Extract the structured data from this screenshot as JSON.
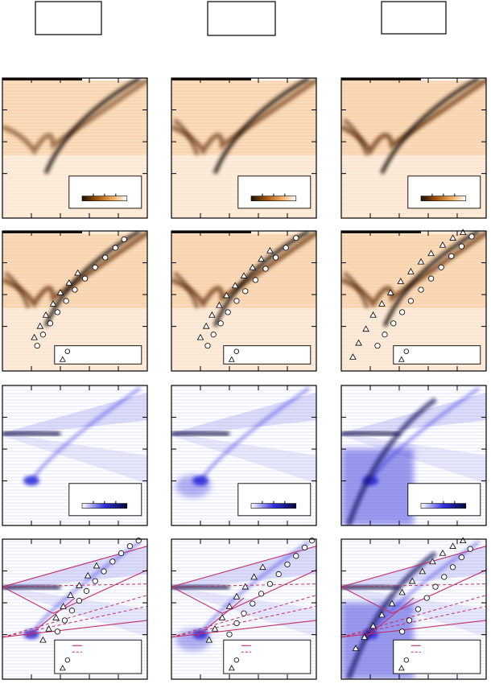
{
  "figure": {
    "columns": 3,
    "rows": 4,
    "header_labels": [
      "",
      "",
      ""
    ]
  },
  "colors": {
    "orange": "#e07a10",
    "dark_band": "#1a1208",
    "blue": "#1a1ad6",
    "theory_line": "#c0306a",
    "marker_fill": "#ffffff",
    "marker_fill_dark": "#ffffff"
  },
  "chart_data": [
    {
      "type": "heatmap",
      "panel": "r1c1",
      "colormap": "orange",
      "colorbar": true,
      "legend": false,
      "valley_x": 0.22,
      "strength": 0.8
    },
    {
      "type": "heatmap",
      "panel": "r1c2",
      "colormap": "orange",
      "colorbar": true,
      "legend": false,
      "valley_x": 0.22,
      "strength": 0.9
    },
    {
      "type": "heatmap",
      "panel": "r1c3",
      "colormap": "orange",
      "colorbar": true,
      "legend": false,
      "valley_x": 0.2,
      "strength": 1.0
    },
    {
      "type": "heatmap",
      "panel": "r2c1",
      "colormap": "orange",
      "colorbar": false,
      "legend": true,
      "circles": [
        [
          0.24,
          0.82
        ],
        [
          0.28,
          0.74
        ],
        [
          0.33,
          0.66
        ],
        [
          0.38,
          0.58
        ],
        [
          0.44,
          0.5
        ],
        [
          0.5,
          0.42
        ],
        [
          0.57,
          0.34
        ],
        [
          0.64,
          0.26
        ],
        [
          0.71,
          0.19
        ],
        [
          0.78,
          0.12
        ],
        [
          0.84,
          0.06
        ]
      ],
      "triangles": [
        [
          0.22,
          0.76
        ],
        [
          0.26,
          0.68
        ],
        [
          0.3,
          0.6
        ],
        [
          0.35,
          0.52
        ],
        [
          0.4,
          0.44
        ],
        [
          0.46,
          0.37
        ],
        [
          0.52,
          0.3
        ]
      ]
    },
    {
      "type": "heatmap",
      "panel": "r2c2",
      "colormap": "orange",
      "colorbar": false,
      "legend": true,
      "circles": [
        [
          0.25,
          0.82
        ],
        [
          0.29,
          0.74
        ],
        [
          0.34,
          0.66
        ],
        [
          0.39,
          0.58
        ],
        [
          0.45,
          0.5
        ],
        [
          0.51,
          0.43
        ],
        [
          0.58,
          0.35
        ],
        [
          0.65,
          0.27
        ],
        [
          0.72,
          0.19
        ],
        [
          0.79,
          0.12
        ],
        [
          0.86,
          0.05
        ]
      ],
      "triangles": [
        [
          0.2,
          0.76
        ],
        [
          0.24,
          0.68
        ],
        [
          0.28,
          0.6
        ],
        [
          0.33,
          0.53
        ],
        [
          0.38,
          0.46
        ],
        [
          0.44,
          0.39
        ],
        [
          0.5,
          0.32
        ],
        [
          0.56,
          0.26
        ],
        [
          0.62,
          0.2
        ],
        [
          0.68,
          0.14
        ]
      ]
    },
    {
      "type": "heatmap",
      "panel": "r2c3",
      "colormap": "orange",
      "colorbar": false,
      "legend": true,
      "circles": [
        [
          0.25,
          0.82
        ],
        [
          0.3,
          0.74
        ],
        [
          0.36,
          0.66
        ],
        [
          0.42,
          0.58
        ],
        [
          0.48,
          0.5
        ],
        [
          0.55,
          0.42
        ],
        [
          0.62,
          0.34
        ],
        [
          0.69,
          0.26
        ],
        [
          0.76,
          0.18
        ],
        [
          0.83,
          0.11
        ],
        [
          0.9,
          0.04
        ]
      ],
      "triangles": [
        [
          0.08,
          0.9
        ],
        [
          0.12,
          0.8
        ],
        [
          0.17,
          0.7
        ],
        [
          0.22,
          0.6
        ],
        [
          0.28,
          0.52
        ],
        [
          0.34,
          0.44
        ],
        [
          0.41,
          0.36
        ],
        [
          0.48,
          0.29
        ],
        [
          0.55,
          0.22
        ],
        [
          0.62,
          0.16
        ],
        [
          0.7,
          0.1
        ],
        [
          0.77,
          0.05
        ],
        [
          0.84,
          0.01
        ]
      ]
    },
    {
      "type": "heatmap",
      "panel": "r3c1",
      "colormap": "blue",
      "colorbar": true,
      "legend": false
    },
    {
      "type": "heatmap",
      "panel": "r3c2",
      "colormap": "blue",
      "colorbar": true,
      "legend": false
    },
    {
      "type": "heatmap",
      "panel": "r3c3",
      "colormap": "blue",
      "colorbar": true,
      "legend": false
    },
    {
      "type": "heatmap",
      "panel": "r4c1",
      "colormap": "blue",
      "colorbar": false,
      "legend": true,
      "lines": true,
      "circles": [
        [
          0.38,
          0.66
        ],
        [
          0.43,
          0.58
        ],
        [
          0.48,
          0.51
        ],
        [
          0.53,
          0.44
        ],
        [
          0.58,
          0.37
        ],
        [
          0.64,
          0.3
        ],
        [
          0.7,
          0.23
        ],
        [
          0.76,
          0.16
        ],
        [
          0.82,
          0.1
        ],
        [
          0.88,
          0.05
        ],
        [
          0.94,
          0.01
        ]
      ],
      "triangles": [
        [
          0.28,
          0.72
        ],
        [
          0.32,
          0.64
        ],
        [
          0.37,
          0.56
        ],
        [
          0.42,
          0.48
        ],
        [
          0.47,
          0.4
        ],
        [
          0.53,
          0.33
        ],
        [
          0.59,
          0.26
        ],
        [
          0.65,
          0.19
        ]
      ]
    },
    {
      "type": "heatmap",
      "panel": "r4c2",
      "colormap": "blue",
      "colorbar": false,
      "legend": true,
      "lines": true,
      "circles": [
        [
          0.4,
          0.68
        ],
        [
          0.45,
          0.6
        ],
        [
          0.5,
          0.53
        ],
        [
          0.56,
          0.46
        ],
        [
          0.62,
          0.39
        ],
        [
          0.68,
          0.32
        ],
        [
          0.74,
          0.25
        ],
        [
          0.8,
          0.18
        ],
        [
          0.86,
          0.12
        ],
        [
          0.92,
          0.06
        ],
        [
          0.97,
          0.01
        ]
      ],
      "triangles": [
        [
          0.26,
          0.72
        ],
        [
          0.3,
          0.64
        ],
        [
          0.35,
          0.56
        ],
        [
          0.4,
          0.48
        ],
        [
          0.45,
          0.41
        ],
        [
          0.51,
          0.34
        ],
        [
          0.57,
          0.27
        ],
        [
          0.63,
          0.2
        ]
      ]
    },
    {
      "type": "heatmap",
      "panel": "r4c3",
      "colormap": "blue",
      "colorbar": false,
      "legend": true,
      "lines": true,
      "circles": [
        [
          0.42,
          0.66
        ],
        [
          0.47,
          0.58
        ],
        [
          0.53,
          0.5
        ],
        [
          0.59,
          0.42
        ],
        [
          0.65,
          0.34
        ],
        [
          0.71,
          0.27
        ],
        [
          0.77,
          0.2
        ],
        [
          0.83,
          0.13
        ],
        [
          0.89,
          0.07
        ]
      ],
      "triangles": [
        [
          0.1,
          0.78
        ],
        [
          0.16,
          0.7
        ],
        [
          0.22,
          0.62
        ],
        [
          0.28,
          0.54
        ],
        [
          0.35,
          0.46
        ],
        [
          0.42,
          0.38
        ],
        [
          0.49,
          0.3
        ],
        [
          0.56,
          0.23
        ],
        [
          0.63,
          0.16
        ],
        [
          0.7,
          0.1
        ],
        [
          0.77,
          0.05
        ],
        [
          0.84,
          0.01
        ]
      ]
    }
  ]
}
